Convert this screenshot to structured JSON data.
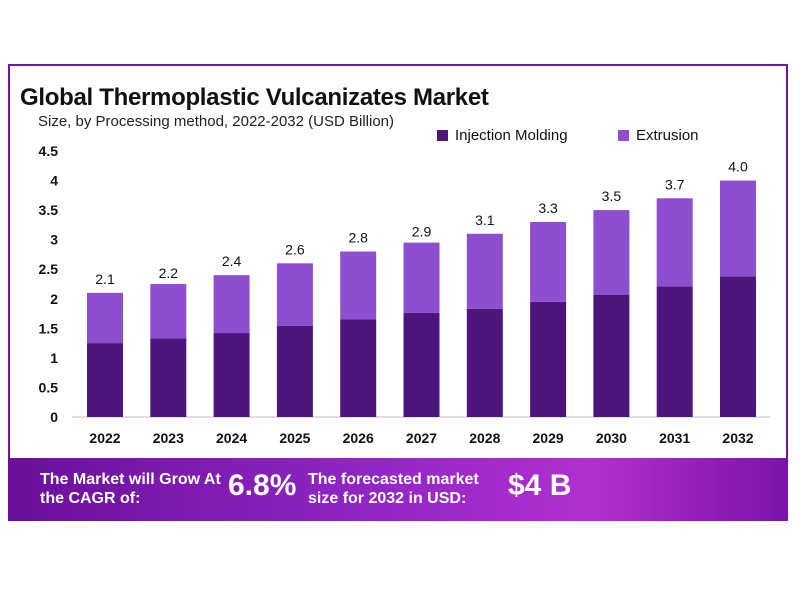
{
  "title": "Global Thermoplastic Vulcanizates Market",
  "subtitle": "Size, by Processing method, 2022-2032 (USD Billion)",
  "colors": {
    "injection": "#4e157d",
    "extrusion": "#8d4fd0",
    "frame": "#6a1a9a"
  },
  "banner": {
    "cagr_label": "The Market will Grow At the CAGR of:",
    "cagr_value": "6.8%",
    "size_label": "The forecasted market size for 2032 in USD:",
    "size_value": "$4 B"
  },
  "chart_data": {
    "type": "bar",
    "stacked": true,
    "title": "Global Thermoplastic Vulcanizates Market",
    "subtitle": "Size, by Processing method, 2022-2032 (USD Billion)",
    "categories": [
      "2022",
      "2023",
      "2024",
      "2025",
      "2026",
      "2027",
      "2028",
      "2029",
      "2030",
      "2031",
      "2032"
    ],
    "series": [
      {
        "name": "Injection Molding",
        "values": [
          1.25,
          1.33,
          1.42,
          1.54,
          1.65,
          1.76,
          1.83,
          1.95,
          2.07,
          2.21,
          2.38
        ]
      },
      {
        "name": "Extrusion",
        "values": [
          0.85,
          0.92,
          0.98,
          1.06,
          1.15,
          1.19,
          1.27,
          1.35,
          1.43,
          1.49,
          1.62
        ]
      }
    ],
    "totals": [
      "2.1",
      "2.2",
      "2.4",
      "2.6",
      "2.8",
      "2.9",
      "3.1",
      "3.3",
      "3.5",
      "3.7",
      "4.0"
    ],
    "ylim": [
      0,
      4.5
    ],
    "yticks": [
      "0",
      "0.5",
      "1",
      "1.5",
      "2",
      "2.5",
      "3",
      "3.5",
      "4",
      "4.5"
    ],
    "xlabel": "",
    "ylabel": "",
    "legend": "top-right"
  }
}
